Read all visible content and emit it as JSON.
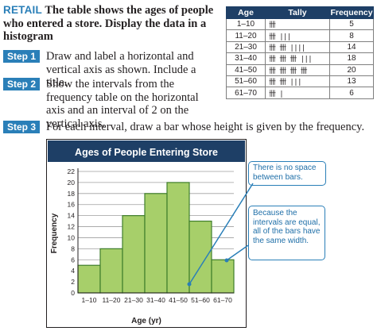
{
  "problem": {
    "keyword": "RETAIL",
    "text": "The table shows the ages of people who entered a store. Display the data in a histogram"
  },
  "steps": [
    {
      "label": "Step 1",
      "text": "Draw and label a horizontal and vertical axis as shown. Include a title."
    },
    {
      "label": "Step 2",
      "text": "Show the intervals from the frequency table on the horizontal axis and an interval of 2 on the vertical axis."
    },
    {
      "label": "Step 3",
      "text": "For each interval, draw a bar whose height is given by the frequency."
    }
  ],
  "table": {
    "headers": [
      "Age",
      "Tally",
      "Frequency"
    ],
    "rows": [
      {
        "age": "1–10",
        "count": 5,
        "freq": "5"
      },
      {
        "age": "11–20",
        "count": 8,
        "freq": "8"
      },
      {
        "age": "21–30",
        "count": 14,
        "freq": "14"
      },
      {
        "age": "31–40",
        "count": 18,
        "freq": "18"
      },
      {
        "age": "41–50",
        "count": 20,
        "freq": "20"
      },
      {
        "age": "51–60",
        "count": 13,
        "freq": "13"
      },
      {
        "age": "61–70",
        "count": 6,
        "freq": "6"
      }
    ]
  },
  "chart_data": {
    "type": "bar",
    "title": "Ages of People Entering Store",
    "xlabel": "Age (yr)",
    "ylabel": "Frequency",
    "categories": [
      "1–10",
      "11–20",
      "21–30",
      "31–40",
      "41–50",
      "51–60",
      "61–70"
    ],
    "values": [
      5,
      8,
      14,
      18,
      20,
      13,
      6
    ],
    "ylim": [
      0,
      22
    ],
    "yticks": [
      0,
      2,
      4,
      6,
      8,
      10,
      12,
      14,
      16,
      18,
      20,
      22
    ],
    "grid": true,
    "colors": {
      "bar_fill": "#a7cf6a",
      "bar_stroke": "#3f7e2c",
      "title_bg": "#1e3f66",
      "grid": "#9f9f9f"
    }
  },
  "callouts": {
    "no_space": "There is no space between bars.",
    "equal_intervals": "Because the intervals are equal, all of the bars have the same width."
  },
  "colors": {
    "accent": "#2a7fb8",
    "header": "#1e3f66"
  }
}
